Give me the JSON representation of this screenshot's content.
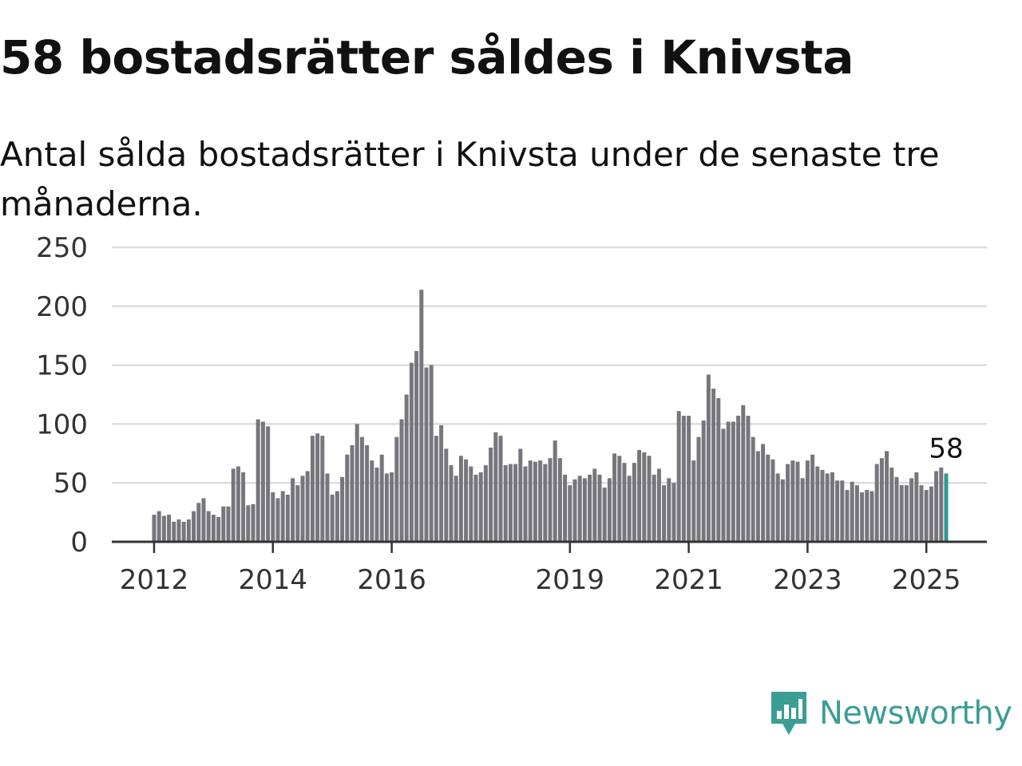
{
  "chart_data": {
    "type": "bar",
    "title": "58 bostadsrätter såldes i Knivsta",
    "subtitle": "Antal sålda bostadsrätter i Knivsta under de senaste tre månaderna.",
    "xlabel": "",
    "ylabel": "",
    "ylim": [
      0,
      250
    ],
    "yticks": [
      0,
      50,
      100,
      150,
      200,
      250
    ],
    "grid": true,
    "x_start": "2012-01",
    "xticks": [
      {
        "label": "2012",
        "index": 0
      },
      {
        "label": "2014",
        "index": 24
      },
      {
        "label": "2016",
        "index": 48
      },
      {
        "label": "2019",
        "index": 84
      },
      {
        "label": "2021",
        "index": 108
      },
      {
        "label": "2023",
        "index": 132
      },
      {
        "label": "2025",
        "index": 156
      }
    ],
    "values": [
      23,
      26,
      22,
      23,
      17,
      19,
      17,
      19,
      26,
      33,
      37,
      26,
      23,
      21,
      30,
      30,
      62,
      64,
      59,
      31,
      32,
      104,
      102,
      98,
      42,
      37,
      43,
      40,
      54,
      48,
      56,
      60,
      90,
      92,
      90,
      58,
      40,
      43,
      55,
      74,
      82,
      100,
      89,
      82,
      69,
      63,
      74,
      58,
      59,
      89,
      104,
      125,
      152,
      162,
      214,
      148,
      150,
      90,
      99,
      79,
      65,
      56,
      73,
      70,
      64,
      57,
      59,
      65,
      80,
      93,
      90,
      65,
      66,
      66,
      79,
      64,
      69,
      68,
      69,
      66,
      71,
      86,
      71,
      57,
      48,
      53,
      56,
      54,
      57,
      62,
      57,
      46,
      54,
      75,
      73,
      67,
      56,
      67,
      78,
      76,
      73,
      57,
      62,
      48,
      54,
      50,
      111,
      107,
      107,
      69,
      89,
      103,
      142,
      130,
      122,
      96,
      102,
      102,
      107,
      116,
      107,
      89,
      77,
      83,
      74,
      70,
      58,
      53,
      66,
      69,
      68,
      54,
      69,
      74,
      64,
      61,
      58,
      59,
      52,
      52,
      44,
      51,
      48,
      42,
      44,
      43,
      66,
      71,
      77,
      63,
      55,
      48,
      48,
      54,
      59,
      48,
      44,
      47,
      60,
      63,
      58
    ],
    "highlight_index": 160,
    "highlight_label": "58",
    "colors": {
      "bar": "#77767c",
      "highlight": "#2c9a91",
      "grid": "#dddddd",
      "axis": "#333333"
    }
  },
  "brand": {
    "name": "Newsworthy",
    "icon": "newsworthy-logo-icon",
    "color": "#3b9e95"
  }
}
